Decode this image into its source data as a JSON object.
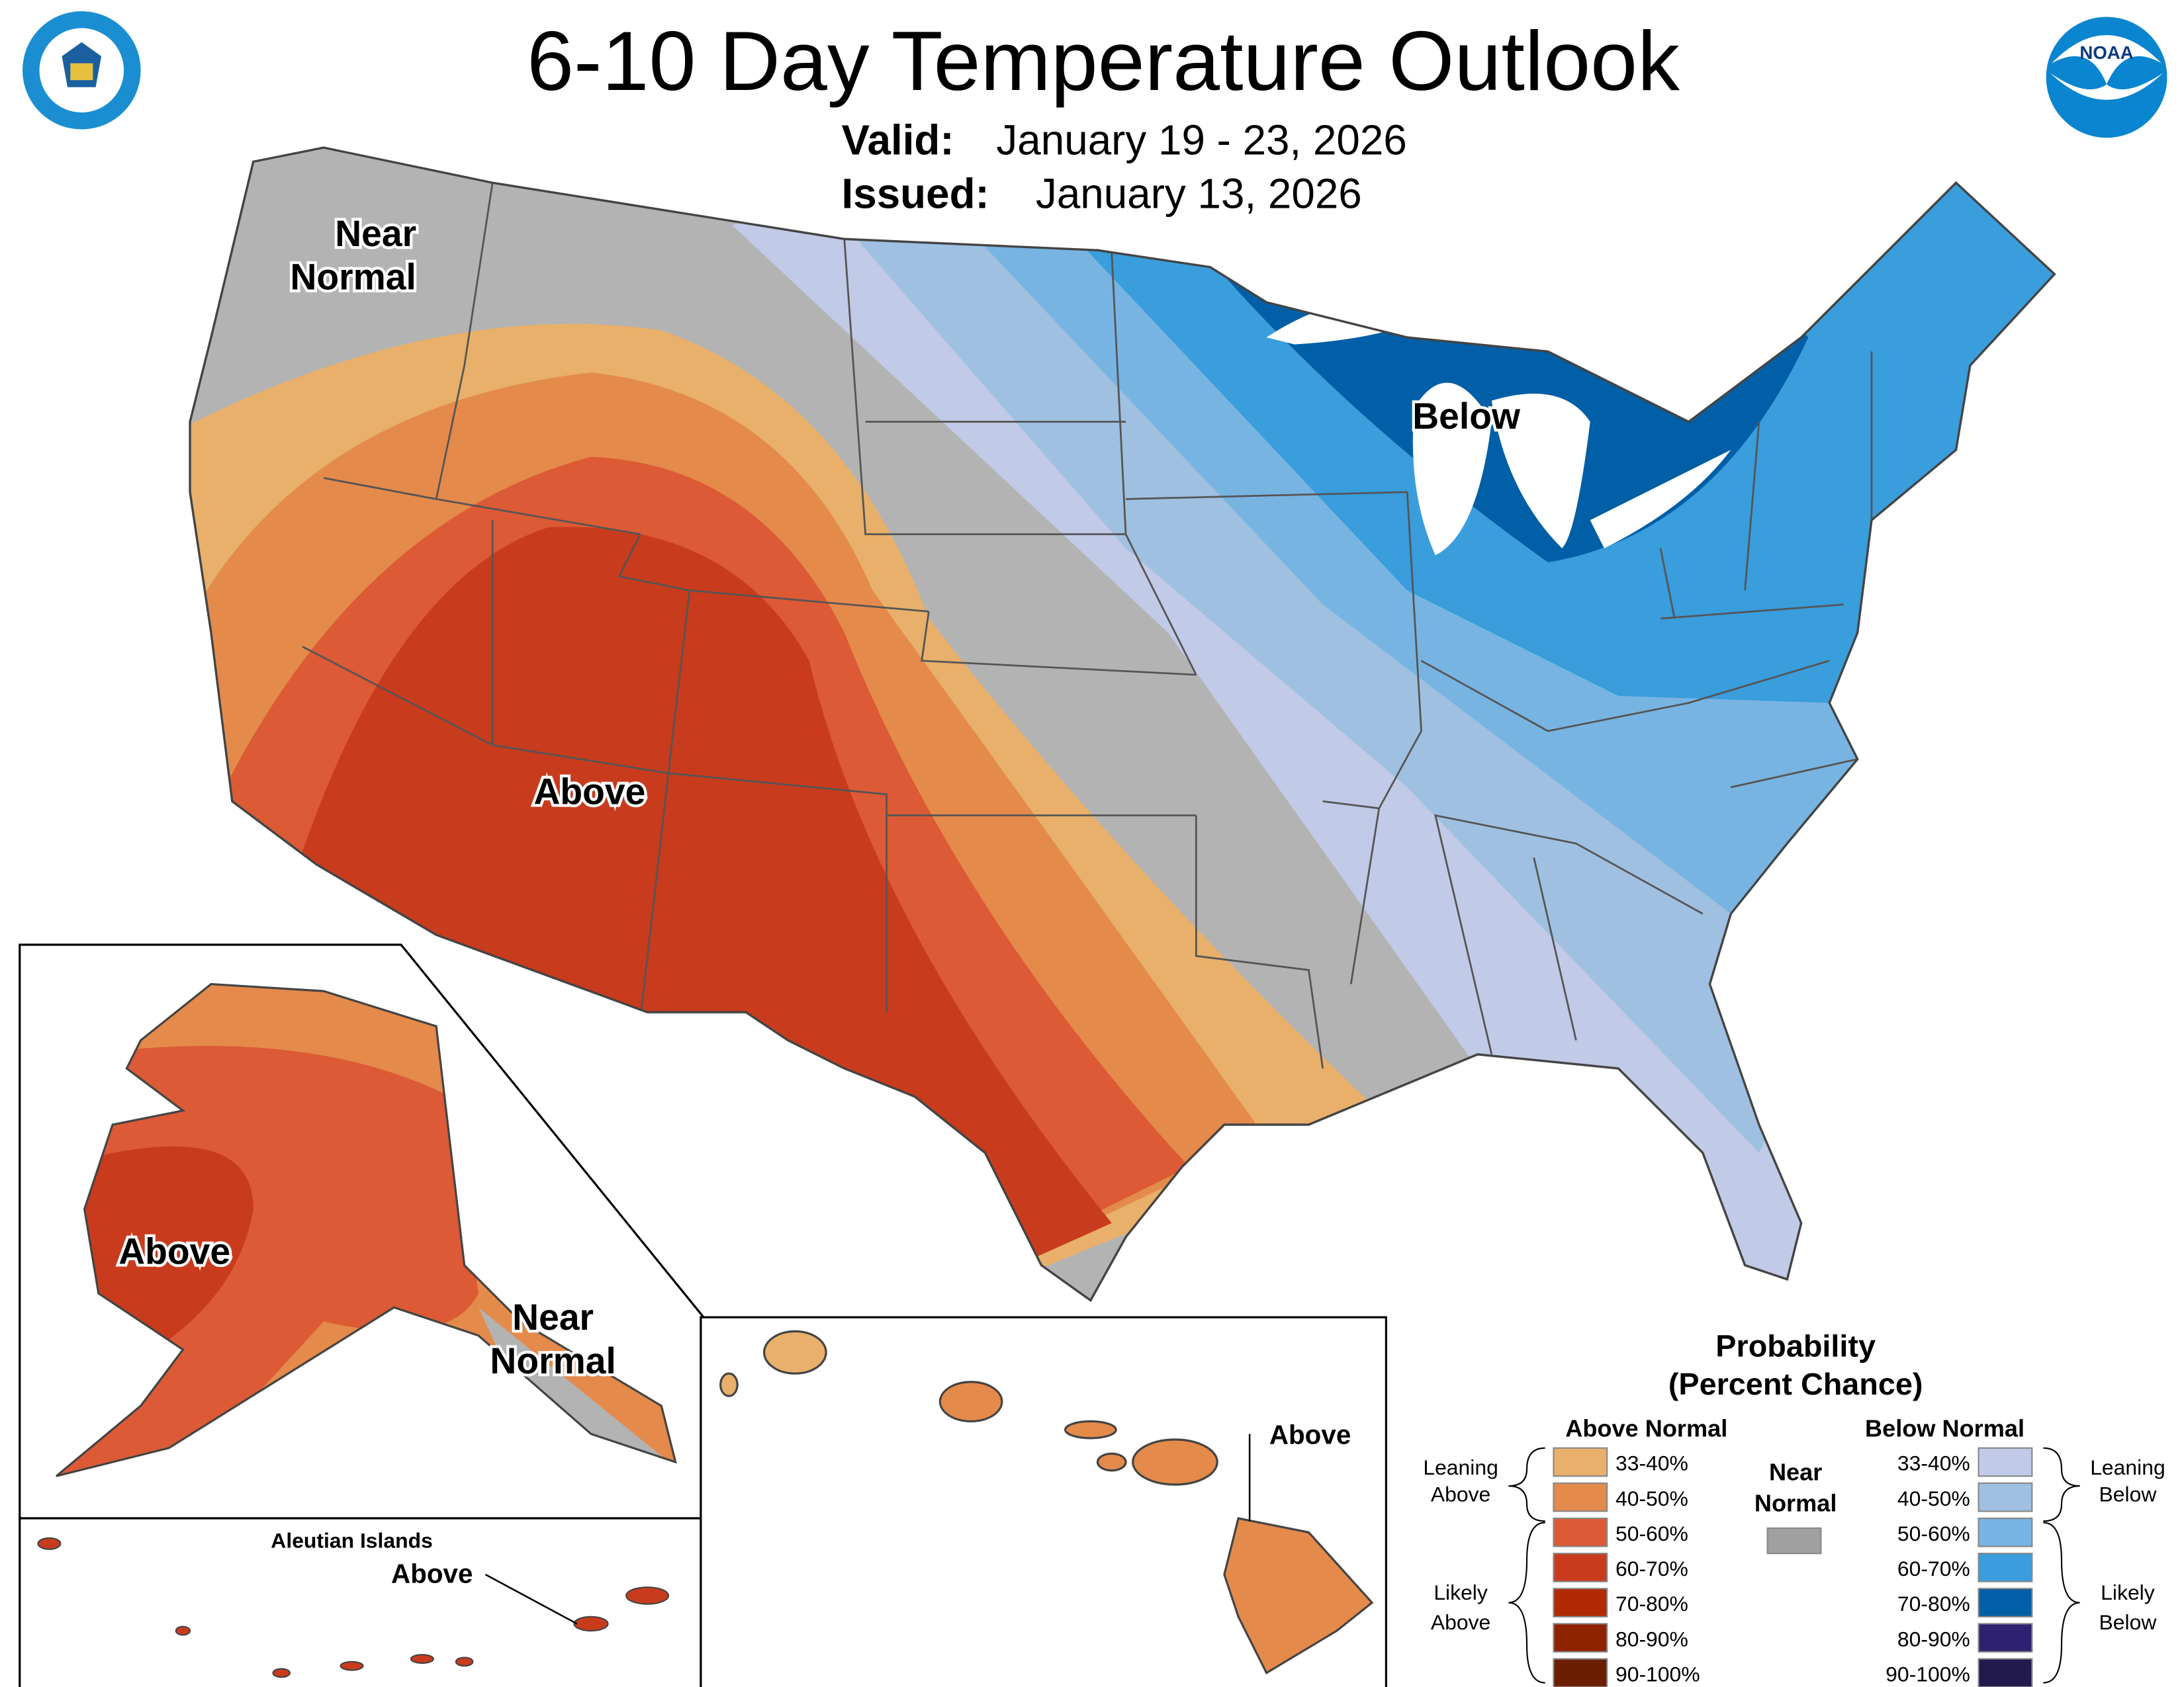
{
  "header": {
    "title": "6-10 Day Temperature Outlook",
    "valid_label": "Valid:",
    "valid_value": "January 19 - 23, 2026",
    "issued_label": "Issued:",
    "issued_value": "January 13, 2026",
    "left_logo": "DEPARTMENT OF COMMERCE · UNITED STATES OF AMERICA",
    "right_logo": "NOAA"
  },
  "map_labels": {
    "conus_nw": [
      "Near",
      "Normal"
    ],
    "conus_above": "Above",
    "conus_below": "Below",
    "alaska_above": "Above",
    "alaska_near": [
      "Near",
      "Normal"
    ],
    "aleutian_title": "Aleutian Islands",
    "aleutian_above": "Above",
    "hawaii_above": "Above"
  },
  "legend": {
    "title": [
      "Probability",
      "(Percent Chance)"
    ],
    "above_header": "Above Normal",
    "below_header": "Below Normal",
    "near_label": [
      "Near",
      "Normal"
    ],
    "near_color": "#a0a0a0",
    "leaning_above": [
      "Leaning",
      "Above"
    ],
    "likely_above": [
      "Likely",
      "Above"
    ],
    "leaning_below": [
      "Leaning",
      "Below"
    ],
    "likely_below": [
      "Likely",
      "Below"
    ],
    "above": [
      {
        "range": "33-40%",
        "color": "#e8b06a"
      },
      {
        "range": "40-50%",
        "color": "#e48a4b"
      },
      {
        "range": "50-60%",
        "color": "#dc5a35"
      },
      {
        "range": "60-70%",
        "color": "#c93b1d"
      },
      {
        "range": "70-80%",
        "color": "#b22a03"
      },
      {
        "range": "80-90%",
        "color": "#8f2200"
      },
      {
        "range": "90-100%",
        "color": "#6c1f00"
      }
    ],
    "below": [
      {
        "range": "33-40%",
        "color": "#c1cae6"
      },
      {
        "range": "40-50%",
        "color": "#9fc0e0"
      },
      {
        "range": "50-60%",
        "color": "#78b4e2"
      },
      {
        "range": "60-70%",
        "color": "#3a9ddc"
      },
      {
        "range": "70-80%",
        "color": "#005fa6"
      },
      {
        "range": "80-90%",
        "color": "#2e2170"
      },
      {
        "range": "90-100%",
        "color": "#221a4d"
      }
    ]
  }
}
